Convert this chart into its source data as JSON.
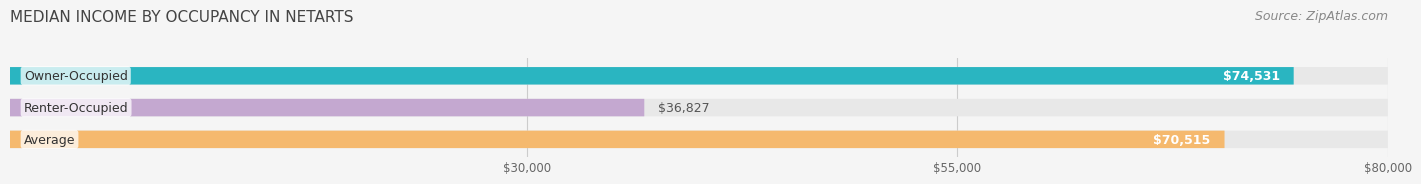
{
  "title": "MEDIAN INCOME BY OCCUPANCY IN NETARTS",
  "source": "Source: ZipAtlas.com",
  "categories": [
    "Owner-Occupied",
    "Renter-Occupied",
    "Average"
  ],
  "values": [
    74531,
    36827,
    70515
  ],
  "bar_colors": [
    "#2ab5c1",
    "#c4a8d0",
    "#f5b96e"
  ],
  "value_labels": [
    "$74,531",
    "$36,827",
    "$70,515"
  ],
  "xlim": [
    0,
    80000
  ],
  "xticks": [
    30000,
    55000,
    80000
  ],
  "xtick_labels": [
    "$30,000",
    "$55,000",
    "$80,000"
  ],
  "bar_height": 0.55,
  "background_color": "#f5f5f5",
  "bar_background_color": "#e8e8e8",
  "title_fontsize": 11,
  "source_fontsize": 9,
  "label_fontsize": 9,
  "value_fontsize": 9
}
